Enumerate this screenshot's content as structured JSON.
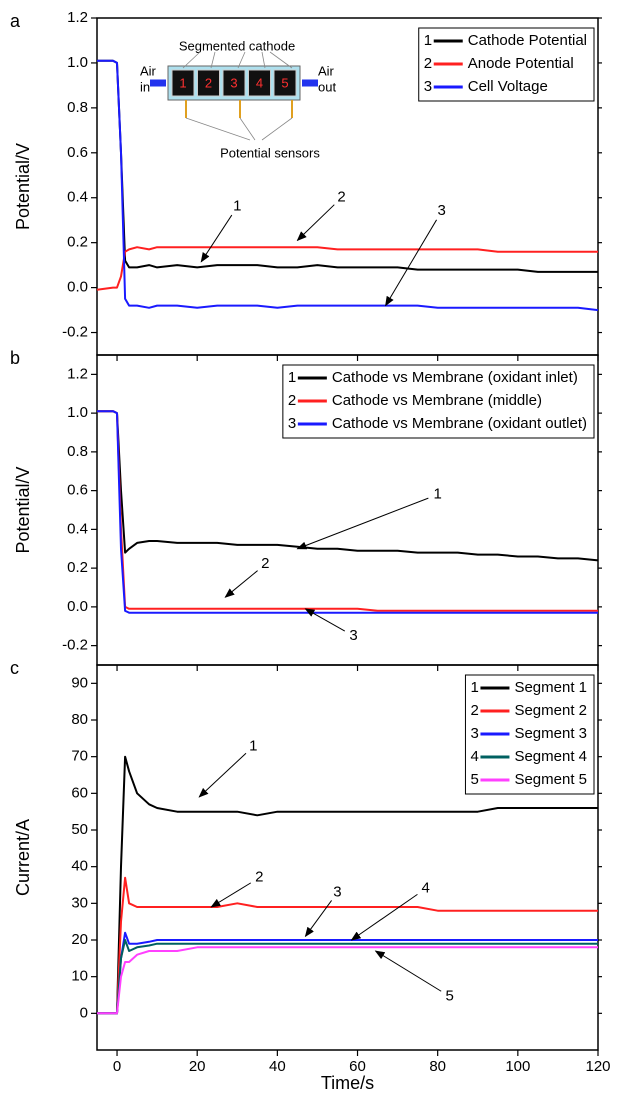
{
  "chart_data": [
    {
      "type": "line",
      "panel_label": "a",
      "ylabel": "Potential/V",
      "x": [
        -5,
        -1,
        0,
        1,
        2,
        3,
        5,
        8,
        10,
        15,
        20,
        25,
        30,
        35,
        40,
        45,
        50,
        55,
        60,
        65,
        70,
        75,
        80,
        85,
        90,
        95,
        100,
        105,
        110,
        115,
        120
      ],
      "series": [
        {
          "key": "1",
          "name": "Cathode Potential",
          "color": "#000000",
          "values": [
            1.01,
            1.01,
            1.0,
            0.6,
            0.12,
            0.09,
            0.09,
            0.1,
            0.09,
            0.1,
            0.09,
            0.1,
            0.1,
            0.1,
            0.09,
            0.09,
            0.1,
            0.09,
            0.09,
            0.09,
            0.09,
            0.08,
            0.08,
            0.08,
            0.08,
            0.08,
            0.08,
            0.07,
            0.07,
            0.07,
            0.07
          ]
        },
        {
          "key": "2",
          "name": "Anode Potential",
          "color": "#ff2020",
          "values": [
            -0.01,
            0.0,
            0.0,
            0.05,
            0.16,
            0.17,
            0.18,
            0.17,
            0.18,
            0.18,
            0.18,
            0.18,
            0.18,
            0.18,
            0.18,
            0.18,
            0.18,
            0.17,
            0.17,
            0.17,
            0.17,
            0.17,
            0.17,
            0.17,
            0.17,
            0.16,
            0.16,
            0.16,
            0.16,
            0.16,
            0.16
          ]
        },
        {
          "key": "3",
          "name": "Cell Voltage",
          "color": "#1a1aff",
          "values": [
            1.01,
            1.01,
            1.0,
            0.6,
            -0.05,
            -0.08,
            -0.08,
            -0.09,
            -0.08,
            -0.08,
            -0.09,
            -0.08,
            -0.08,
            -0.08,
            -0.09,
            -0.08,
            -0.08,
            -0.08,
            -0.08,
            -0.08,
            -0.08,
            -0.08,
            -0.09,
            -0.09,
            -0.09,
            -0.09,
            -0.09,
            -0.09,
            -0.09,
            -0.09,
            -0.1
          ]
        }
      ],
      "xlim": [
        -5,
        120
      ],
      "xticks": [
        0,
        20,
        40,
        60,
        80,
        100,
        120
      ],
      "show_xtick_labels": false,
      "ylim": [
        -0.3,
        1.2
      ],
      "yticks": [
        -0.2,
        {
          "value": 0,
          "label": "0.0"
        },
        0.2,
        0.4,
        0.6,
        0.8,
        {
          "value": 1,
          "label": "1.0"
        },
        1.2
      ],
      "legend": "upper right",
      "annotations": [
        {
          "text": "1",
          "xytext": [
            30,
            0.36
          ],
          "xy": [
            21,
            0.115
          ]
        },
        {
          "text": "2",
          "xytext": [
            56,
            0.4
          ],
          "xy": [
            45,
            0.21
          ]
        },
        {
          "text": "3",
          "xytext": [
            81,
            0.34
          ],
          "xy": [
            67,
            -0.08
          ]
        }
      ],
      "inset": {
        "title": "Segmented cathode",
        "inlet": [
          "Air",
          "in"
        ],
        "outlet": [
          "Air",
          "out"
        ],
        "segments": [
          "1",
          "2",
          "3",
          "4",
          "5"
        ],
        "sensors": "Potential sensors"
      }
    },
    {
      "type": "line",
      "panel_label": "b",
      "ylabel": "Potential/V",
      "x": [
        -5,
        -1,
        0,
        1,
        2,
        3,
        5,
        8,
        10,
        15,
        20,
        25,
        30,
        35,
        40,
        45,
        50,
        55,
        60,
        65,
        70,
        75,
        80,
        85,
        90,
        95,
        100,
        105,
        110,
        115,
        120
      ],
      "series": [
        {
          "key": "1",
          "name": "Cathode vs Membrane (oxidant inlet)",
          "color": "#000000",
          "values": [
            1.01,
            1.01,
            1.0,
            0.6,
            0.28,
            0.3,
            0.33,
            0.34,
            0.34,
            0.33,
            0.33,
            0.33,
            0.32,
            0.32,
            0.32,
            0.31,
            0.3,
            0.3,
            0.29,
            0.29,
            0.29,
            0.28,
            0.28,
            0.28,
            0.27,
            0.27,
            0.26,
            0.26,
            0.25,
            0.25,
            0.24
          ]
        },
        {
          "key": "2",
          "name": "Cathode vs Membrane (middle)",
          "color": "#ff2020",
          "values": [
            1.01,
            1.01,
            1.0,
            0.4,
            0.0,
            -0.01,
            -0.01,
            -0.01,
            -0.01,
            -0.01,
            -0.01,
            -0.01,
            -0.01,
            -0.01,
            -0.01,
            -0.01,
            -0.01,
            -0.01,
            -0.01,
            -0.02,
            -0.02,
            -0.02,
            -0.02,
            -0.02,
            -0.02,
            -0.02,
            -0.02,
            -0.02,
            -0.02,
            -0.02,
            -0.02
          ]
        },
        {
          "key": "3",
          "name": "Cathode vs Membrane (oxidant outlet)",
          "color": "#1a1aff",
          "values": [
            1.01,
            1.01,
            1.0,
            0.3,
            -0.02,
            -0.03,
            -0.03,
            -0.03,
            -0.03,
            -0.03,
            -0.03,
            -0.03,
            -0.03,
            -0.03,
            -0.03,
            -0.03,
            -0.03,
            -0.03,
            -0.03,
            -0.03,
            -0.03,
            -0.03,
            -0.03,
            -0.03,
            -0.03,
            -0.03,
            -0.03,
            -0.03,
            -0.03,
            -0.03,
            -0.03
          ]
        }
      ],
      "xlim": [
        -5,
        120
      ],
      "xticks": [
        0,
        20,
        40,
        60,
        80,
        100,
        120
      ],
      "show_xtick_labels": false,
      "ylim": [
        -0.3,
        1.3
      ],
      "yticks": [
        -0.2,
        {
          "value": 0,
          "label": "0.0"
        },
        0.2,
        0.4,
        0.6,
        0.8,
        {
          "value": 1,
          "label": "1.0"
        },
        1.2
      ],
      "legend": "upper right",
      "annotations": [
        {
          "text": "1",
          "xytext": [
            80,
            0.58
          ],
          "xy": [
            45,
            0.3
          ]
        },
        {
          "text": "2",
          "xytext": [
            37,
            0.22
          ],
          "xy": [
            27,
            0.05
          ]
        },
        {
          "text": "3",
          "xytext": [
            59,
            -0.15
          ],
          "xy": [
            47,
            -0.01
          ]
        }
      ]
    },
    {
      "type": "line",
      "panel_label": "c",
      "ylabel": "Current/A",
      "xlabel": "Time/s",
      "x": [
        -5,
        -1,
        0,
        1,
        2,
        3,
        5,
        8,
        10,
        15,
        20,
        25,
        30,
        35,
        40,
        45,
        50,
        55,
        60,
        65,
        70,
        75,
        80,
        85,
        90,
        95,
        100,
        105,
        110,
        115,
        120
      ],
      "series": [
        {
          "key": "1",
          "name": "Segment 1",
          "color": "#000000",
          "values": [
            0,
            0,
            0,
            40,
            70,
            66,
            60,
            57,
            56,
            55,
            55,
            55,
            55,
            54,
            55,
            55,
            55,
            55,
            55,
            55,
            55,
            55,
            55,
            55,
            55,
            56,
            56,
            56,
            56,
            56,
            56
          ]
        },
        {
          "key": "2",
          "name": "Segment 2",
          "color": "#ff2020",
          "values": [
            0,
            0,
            0,
            25,
            37,
            30,
            29,
            29,
            29,
            29,
            29,
            29,
            30,
            29,
            29,
            29,
            29,
            29,
            29,
            29,
            29,
            29,
            28,
            28,
            28,
            28,
            28,
            28,
            28,
            28,
            28
          ]
        },
        {
          "key": "3",
          "name": "Segment 3",
          "color": "#1a1aff",
          "values": [
            0,
            0,
            0,
            15,
            22,
            19,
            19,
            19.5,
            20,
            20,
            20,
            20,
            20,
            20,
            20,
            20,
            20,
            20,
            20,
            20,
            20,
            20,
            20,
            20,
            20,
            20,
            20,
            20,
            20,
            20,
            20
          ]
        },
        {
          "key": "4",
          "name": "Segment 4",
          "color": "#006060",
          "values": [
            0,
            0,
            0,
            15,
            20,
            17,
            18,
            18.5,
            19,
            19,
            19,
            19,
            19,
            19,
            19,
            19,
            19,
            19,
            19,
            19,
            19,
            19,
            19,
            19,
            19,
            19,
            19,
            19,
            19,
            19,
            19
          ]
        },
        {
          "key": "5",
          "name": "Segment 5",
          "color": "#ff40ff",
          "values": [
            0,
            0,
            0,
            10,
            14,
            14,
            16,
            17,
            17,
            17,
            18,
            18,
            18,
            18,
            18,
            18,
            18,
            18,
            18,
            18,
            18,
            18,
            18,
            18,
            18,
            18,
            18,
            18,
            18,
            18,
            18
          ]
        }
      ],
      "xlim": [
        -5,
        120
      ],
      "xticks": [
        0,
        20,
        40,
        60,
        80,
        100,
        120
      ],
      "show_xtick_labels": true,
      "ylim": [
        -10,
        95
      ],
      "yticks": [
        0,
        10,
        20,
        30,
        40,
        50,
        60,
        70,
        80,
        90
      ],
      "legend": "upper right",
      "annotations": [
        {
          "text": "1",
          "xytext": [
            34,
            72.8
          ],
          "xy": [
            20.5,
            59
          ]
        },
        {
          "text": "2",
          "xytext": [
            35.5,
            37
          ],
          "xy": [
            23.5,
            29
          ]
        },
        {
          "text": "3",
          "xytext": [
            55,
            33
          ],
          "xy": [
            47,
            21
          ]
        },
        {
          "text": "4",
          "xytext": [
            77,
            34
          ],
          "xy": [
            58.5,
            20
          ]
        },
        {
          "text": "5",
          "xytext": [
            83,
            4.6
          ],
          "xy": [
            64.5,
            17
          ]
        }
      ]
    }
  ]
}
